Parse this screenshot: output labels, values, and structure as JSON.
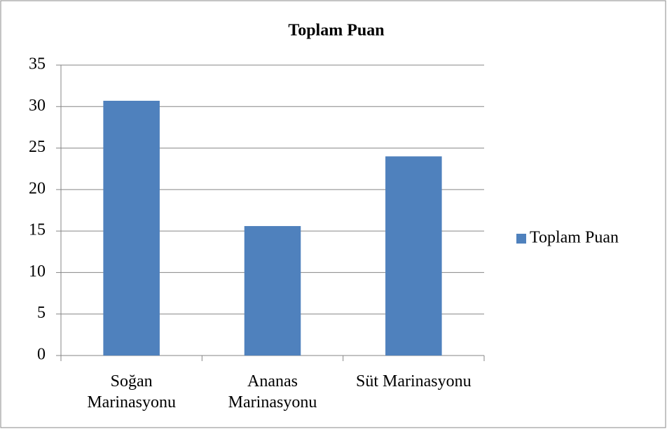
{
  "chart_data": {
    "type": "bar",
    "title": "Toplam Puan",
    "categories": [
      "Soğan Marinasyonu",
      "Ananas Marinasyonu",
      "Süt Marinasyonu"
    ],
    "series": [
      {
        "name": "Toplam Puan",
        "color": "#4f81bd",
        "values": [
          30.7,
          15.6,
          24.0
        ]
      }
    ],
    "ylim": [
      0,
      35
    ],
    "yticks": [
      0,
      5,
      10,
      15,
      20,
      25,
      30,
      35
    ],
    "grid": true,
    "legend": "right"
  }
}
